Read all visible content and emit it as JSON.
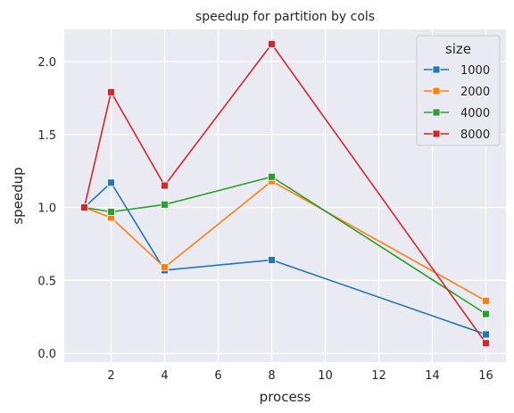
{
  "chart_data": {
    "type": "line",
    "title": "speedup for partition by cols",
    "xlabel": "process",
    "ylabel": "speedup",
    "x": [
      1,
      2,
      4,
      8,
      16
    ],
    "xticks": [
      2,
      4,
      6,
      8,
      10,
      12,
      14,
      16
    ],
    "yticks": [
      0.0,
      0.5,
      1.0,
      1.5,
      2.0
    ],
    "xlim": [
      0.25,
      16.75
    ],
    "ylim": [
      -0.06,
      2.22
    ],
    "grid": true,
    "legend": {
      "title": "size",
      "placement": "top-right"
    },
    "marker": "square",
    "series": [
      {
        "name": "1000",
        "color": "#1f77b4",
        "values": [
          1.0,
          1.17,
          0.57,
          0.64,
          0.13
        ]
      },
      {
        "name": "2000",
        "color": "#ff7f0e",
        "values": [
          1.0,
          0.93,
          0.59,
          1.18,
          0.36
        ]
      },
      {
        "name": "4000",
        "color": "#2ca02c",
        "values": [
          1.0,
          0.97,
          1.02,
          1.21,
          0.27
        ]
      },
      {
        "name": "8000",
        "color": "#d62728",
        "values": [
          1.0,
          1.79,
          1.15,
          2.12,
          0.07
        ]
      }
    ]
  }
}
